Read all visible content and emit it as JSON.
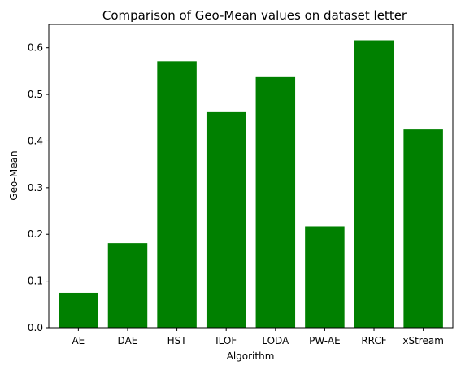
{
  "chart_data": {
    "type": "bar",
    "title": "Comparison of Geo-Mean values on dataset letter",
    "xlabel": "Algorithm",
    "ylabel": "Geo-Mean",
    "categories": [
      "AE",
      "DAE",
      "HST",
      "ILOF",
      "LODA",
      "PW-AE",
      "RRCF",
      "xStream"
    ],
    "values": [
      0.075,
      0.181,
      0.571,
      0.462,
      0.537,
      0.217,
      0.616,
      0.425
    ],
    "ylim": [
      0,
      0.65
    ],
    "yticks": [
      "0.0",
      "0.1",
      "0.2",
      "0.3",
      "0.4",
      "0.5",
      "0.6"
    ],
    "bar_color": "#008000",
    "grid": false,
    "legend": "none"
  }
}
